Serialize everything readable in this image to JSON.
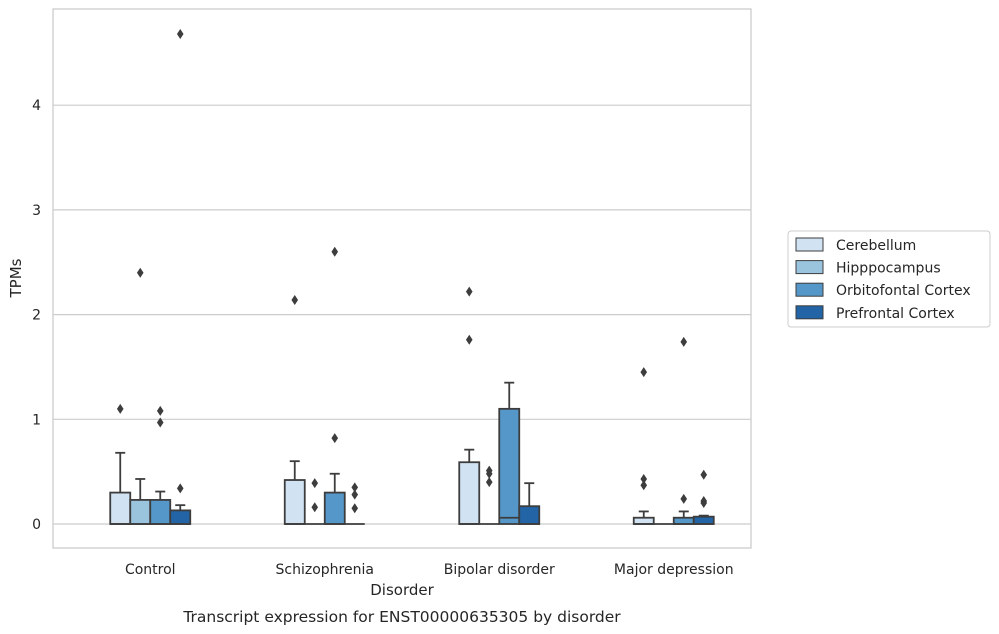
{
  "chart_data": {
    "type": "box",
    "title": "",
    "caption": "Transcript expression for ENST00000635305 by disorder",
    "xlabel": "Disorder",
    "ylabel": "TPMs",
    "ylim": [
      -0.23,
      4.9
    ],
    "yticks": [
      0,
      1,
      2,
      3,
      4
    ],
    "grid": "horizontal",
    "legend_position": "right",
    "categories": [
      "Control",
      "Schizophrenia",
      "Bipolar disorder",
      "Major depression"
    ],
    "series": [
      {
        "name": "Cerebellum",
        "color": "#d1e2f2",
        "boxes": [
          {
            "q1": 0,
            "median": 0,
            "q3": 0.3,
            "whisker_low": 0,
            "whisker_high": 0.68,
            "outliers": [
              1.1
            ]
          },
          {
            "q1": 0,
            "median": 0,
            "q3": 0.42,
            "whisker_low": 0,
            "whisker_high": 0.6,
            "outliers": [
              2.14
            ]
          },
          {
            "q1": 0,
            "median": 0,
            "q3": 0.59,
            "whisker_low": 0,
            "whisker_high": 0.71,
            "outliers": [
              2.22,
              1.76
            ]
          },
          {
            "q1": 0,
            "median": 0,
            "q3": 0.06,
            "whisker_low": 0,
            "whisker_high": 0.12,
            "outliers": [
              1.45,
              0.43,
              0.37
            ]
          }
        ]
      },
      {
        "name": "Hipppocampus",
        "color": "#9ac3de",
        "boxes": [
          {
            "q1": 0,
            "median": 0,
            "q3": 0.23,
            "whisker_low": 0,
            "whisker_high": 0.43,
            "outliers": [
              2.4
            ]
          },
          {
            "q1": 0,
            "median": 0,
            "q3": 0,
            "whisker_low": 0,
            "whisker_high": 0,
            "outliers": [
              0.39,
              0.16
            ]
          },
          {
            "q1": 0,
            "median": 0,
            "q3": 0,
            "whisker_low": 0,
            "whisker_high": 0,
            "outliers": [
              0.51,
              0.48,
              0.4
            ]
          },
          {
            "q1": 0,
            "median": 0,
            "q3": 0,
            "whisker_low": 0,
            "whisker_high": 0,
            "outliers": []
          }
        ]
      },
      {
        "name": "Orbitofontal Cortex",
        "color": "#5497c8",
        "boxes": [
          {
            "q1": 0,
            "median": 0,
            "q3": 0.23,
            "whisker_low": 0,
            "whisker_high": 0.31,
            "outliers": [
              1.08,
              0.97
            ]
          },
          {
            "q1": 0,
            "median": 0,
            "q3": 0.3,
            "whisker_low": 0,
            "whisker_high": 0.48,
            "outliers": [
              2.6,
              0.82
            ]
          },
          {
            "q1": 0,
            "median": 0.06,
            "q3": 1.1,
            "whisker_low": 0,
            "whisker_high": 1.35,
            "outliers": []
          },
          {
            "q1": 0,
            "median": 0,
            "q3": 0.06,
            "whisker_low": 0,
            "whisker_high": 0.12,
            "outliers": [
              1.74,
              0.24
            ]
          }
        ]
      },
      {
        "name": "Prefrontal Cortex",
        "color": "#2264a6",
        "boxes": [
          {
            "q1": 0,
            "median": 0,
            "q3": 0.13,
            "whisker_low": 0,
            "whisker_high": 0.18,
            "outliers": [
              4.68,
              0.34
            ]
          },
          {
            "q1": 0,
            "median": 0,
            "q3": 0,
            "whisker_low": 0,
            "whisker_high": 0,
            "outliers": [
              0.35,
              0.28,
              0.15
            ]
          },
          {
            "q1": 0,
            "median": 0,
            "q3": 0.17,
            "whisker_low": 0,
            "whisker_high": 0.39,
            "outliers": []
          },
          {
            "q1": 0,
            "median": 0,
            "q3": 0.07,
            "whisker_low": 0,
            "whisker_high": 0.08,
            "outliers": [
              0.47,
              0.22,
              0.2
            ]
          }
        ]
      }
    ]
  }
}
